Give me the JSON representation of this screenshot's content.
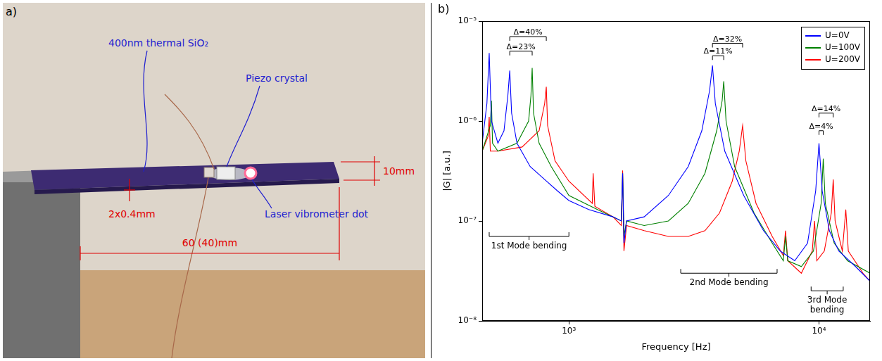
{
  "panel_a": {
    "letter": "a)",
    "labels": {
      "oxide": "400nm thermal SiO₂",
      "piezo": "Piezo crystal",
      "width": "10mm",
      "thickness": "2x0.4mm",
      "length": "60 (40)mm",
      "laser": "Laser vibrometer dot"
    }
  },
  "panel_b": {
    "letter": "b)"
  },
  "chart_data": {
    "type": "line",
    "x_label": "Frequency [Hz]",
    "y_label": "|G| [a.u.]",
    "log": true,
    "grid": false,
    "legend": "northeast",
    "xlim": [
      450,
      16000
    ],
    "xticks": [
      {
        "value": 1000,
        "label": "10³"
      },
      {
        "value": 10000,
        "label": "10⁴"
      }
    ],
    "ylim": [
      1e-08,
      1e-05
    ],
    "yticks": [
      {
        "value": 1e-08,
        "label": "10⁻⁸"
      },
      {
        "value": 1e-07,
        "label": "10⁻⁷"
      },
      {
        "value": 1e-06,
        "label": "10⁻⁶"
      },
      {
        "value": 1e-05,
        "label": "10⁻⁵"
      }
    ],
    "series": [
      {
        "name": "U=0V",
        "color": "#0000ff",
        "x": [
          450,
          470,
          480,
          490,
          520,
          550,
          570,
          580,
          590,
          620,
          700,
          800,
          900,
          1000,
          1200,
          1500,
          1620,
          1640,
          1660,
          1700,
          2000,
          2500,
          3000,
          3400,
          3650,
          3750,
          3850,
          4200,
          5000,
          6000,
          7000,
          8000,
          9000,
          9700,
          10000,
          10300,
          11000,
          12000,
          14000,
          16000
        ],
        "values": [
          6e-07,
          1.5e-06,
          4.8e-06,
          1e-06,
          6e-07,
          8e-07,
          1.8e-06,
          3.2e-06,
          1.2e-06,
          6e-07,
          3.5e-07,
          2.6e-07,
          2e-07,
          1.6e-07,
          1.3e-07,
          1.1e-07,
          1e-07,
          3e-07,
          6e-08,
          1e-07,
          1.1e-07,
          1.8e-07,
          3.5e-07,
          8e-07,
          2e-06,
          3.6e-06,
          1.5e-06,
          5e-07,
          1.8e-07,
          8e-08,
          5e-08,
          4e-08,
          6e-08,
          2e-07,
          6e-07,
          2e-07,
          8e-08,
          5e-08,
          3.5e-08,
          2.5e-08
        ]
      },
      {
        "name": "U=100V",
        "color": "#008000",
        "x": [
          450,
          485,
          490,
          495,
          520,
          620,
          690,
          705,
          713,
          722,
          760,
          850,
          1000,
          1300,
          1620,
          1640,
          1660,
          1700,
          2000,
          2500,
          3000,
          3500,
          3900,
          4100,
          4160,
          4250,
          4600,
          5500,
          6500,
          7200,
          7350,
          7500,
          8500,
          9500,
          10200,
          10400,
          10600,
          11500,
          13000,
          16000
        ],
        "values": [
          5e-07,
          9e-07,
          1.6e-06,
          6e-07,
          5e-07,
          6e-07,
          1e-06,
          1.8e-06,
          3.4e-06,
          1.2e-06,
          6e-07,
          3.5e-07,
          1.8e-07,
          1.3e-07,
          1e-07,
          3e-07,
          7e-08,
          1e-07,
          9e-08,
          1e-07,
          1.5e-07,
          3e-07,
          8e-07,
          1.6e-06,
          2.5e-06,
          1e-06,
          3.5e-07,
          1.2e-07,
          6e-08,
          4e-08,
          7e-08,
          4e-08,
          3.5e-08,
          5e-08,
          1.5e-07,
          4.2e-07,
          1.5e-07,
          6e-08,
          4e-08,
          3e-08
        ]
      },
      {
        "name": "U=200V",
        "color": "#ff0000",
        "x": [
          450,
          475,
          480,
          485,
          520,
          650,
          760,
          800,
          812,
          822,
          880,
          1000,
          1240,
          1250,
          1270,
          1500,
          1620,
          1640,
          1660,
          1700,
          2000,
          2500,
          3000,
          3500,
          4000,
          4500,
          4800,
          4950,
          5100,
          5600,
          6500,
          7200,
          7350,
          7500,
          8500,
          9400,
          9600,
          9800,
          10500,
          11200,
          11400,
          11600,
          12400,
          12800,
          13100,
          15000,
          16000
        ],
        "values": [
          5e-07,
          7e-07,
          1.1e-06,
          5e-07,
          5e-07,
          5.5e-07,
          8e-07,
          1.5e-06,
          2.2e-06,
          9e-07,
          4e-07,
          2.5e-07,
          1.5e-07,
          3e-07,
          1.4e-07,
          1.1e-07,
          9e-08,
          3.2e-07,
          5e-08,
          9e-08,
          8e-08,
          7e-08,
          7e-08,
          8e-08,
          1.2e-07,
          2.5e-07,
          5e-07,
          9e-07,
          4e-07,
          1.5e-07,
          7e-08,
          4.5e-08,
          8e-08,
          4e-08,
          3e-08,
          5e-08,
          1e-07,
          4e-08,
          5e-08,
          1.2e-07,
          2.6e-07,
          1e-07,
          5e-08,
          1.3e-07,
          5e-08,
          3e-08,
          2.5e-08
        ]
      }
    ],
    "annotations": [
      {
        "text": "Δ=40%",
        "x": [
          580,
          812
        ],
        "y": 7e-06
      },
      {
        "text": "Δ=23%",
        "x": [
          580,
          713
        ],
        "y": 5e-06
      },
      {
        "text": "Δ=32%",
        "x": [
          3750,
          4950
        ],
        "y": 6e-06
      },
      {
        "text": "Δ=11%",
        "x": [
          3750,
          4160
        ],
        "y": 4.5e-06
      },
      {
        "text": "Δ=14%",
        "x": [
          10000,
          11400
        ],
        "y": 1.2e-06
      },
      {
        "text": "Δ=4%",
        "x": [
          10000,
          10400
        ],
        "y": 8e-07
      }
    ],
    "mode_labels": [
      {
        "text": "1st Mode bending",
        "x": [
          480,
          1000
        ],
        "y": 7e-08
      },
      {
        "text": "2nd Mode bending",
        "x": [
          2800,
          6800
        ],
        "y": 3e-08
      },
      {
        "text": "3rd Mode bending",
        "x": [
          9300,
          12500
        ],
        "y": 2e-08
      }
    ]
  }
}
